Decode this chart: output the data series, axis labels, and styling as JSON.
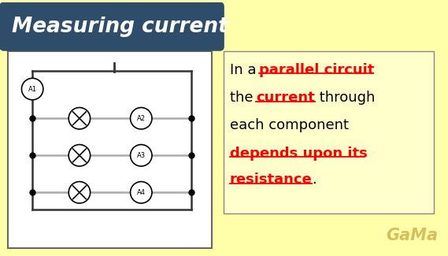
{
  "title": "Measuring current",
  "title_bg": "#2E4D6B",
  "title_text_color": "#FFFFFF",
  "background_color": "#FFFFAA",
  "circuit_bg": "#FFFFFF",
  "text_line1_plain": "In a ",
  "text_line1_colored": "parallel circuit",
  "text_line2_plain1": "the ",
  "text_line2_colored": "current",
  "text_line2_plain2": " through",
  "text_line3": "each component",
  "text_line4_colored": "depends upon its",
  "text_line5_colored": "resistance",
  "text_line5_plain": ".",
  "font_family": "Comic Sans MS",
  "watermark": "GaMa",
  "wire_color_dark": "#333333",
  "wire_color_light": "#AAAAAA",
  "panel_bg": "#FFFFCC",
  "panel_border": "#888888"
}
